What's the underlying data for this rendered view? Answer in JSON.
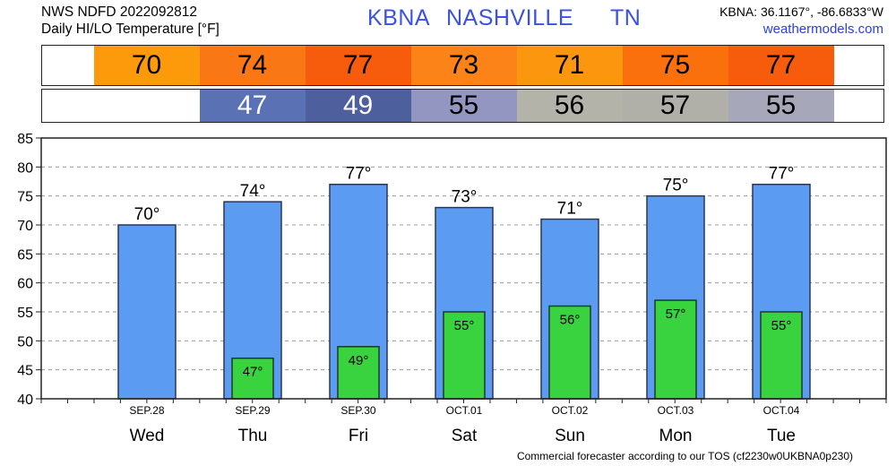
{
  "header": {
    "line1": "NWS NDFD 2022092812",
    "line2": "Daily HI/LO Temperature [°F]",
    "station": "KBNA",
    "city": "NASHVILLE",
    "state": "TN",
    "coords": "KBNA: 36.1167°, -86.6833°W",
    "site": "weathermodels.com"
  },
  "footer": "Commercial forecaster according to our TOS (cf2230w0UKBNA0p230)",
  "colors": {
    "hi_bar": "#5b9cf2",
    "lo_bar": "#38d33e"
  },
  "hi_strip": [
    {
      "text": "70",
      "color": "#fc9a0c"
    },
    {
      "text": "74",
      "color": "#fa7715"
    },
    {
      "text": "77",
      "color": "#f75c0c"
    },
    {
      "text": "73",
      "color": "#fb8318"
    },
    {
      "text": "71",
      "color": "#fc960e"
    },
    {
      "text": "75",
      "color": "#f9700d"
    },
    {
      "text": "77",
      "color": "#f75c0c"
    }
  ],
  "lo_strip": [
    {
      "text": "",
      "color": "#ffffff"
    },
    {
      "text": "47",
      "color": "#5a71b3",
      "fg": "#ffffff"
    },
    {
      "text": "49",
      "color": "#4e5f9e",
      "fg": "#ffffff"
    },
    {
      "text": "55",
      "color": "#9496c2",
      "fg": "#000000"
    },
    {
      "text": "56",
      "color": "#b3b3a9",
      "fg": "#000000"
    },
    {
      "text": "57",
      "color": "#b0b0a8",
      "fg": "#000000"
    },
    {
      "text": "55",
      "color": "#a6a7b8",
      "fg": "#000000"
    }
  ],
  "chart_data": {
    "type": "bar",
    "categories": [
      "Wed",
      "Thu",
      "Fri",
      "Sat",
      "Sun",
      "Mon",
      "Tue"
    ],
    "dates": [
      "SEP.28",
      "SEP.29",
      "SEP.30",
      "OCT.01",
      "OCT.02",
      "OCT.03",
      "OCT.04"
    ],
    "series": [
      {
        "values": [
          70,
          74,
          77,
          73,
          71,
          75,
          77
        ]
      },
      {
        "values": [
          null,
          47,
          49,
          55,
          56,
          57,
          55
        ]
      }
    ],
    "ylim": [
      40,
      85
    ],
    "yticks": [
      40,
      45,
      50,
      55,
      60,
      65,
      70,
      75,
      80,
      85
    ],
    "grid": true
  }
}
